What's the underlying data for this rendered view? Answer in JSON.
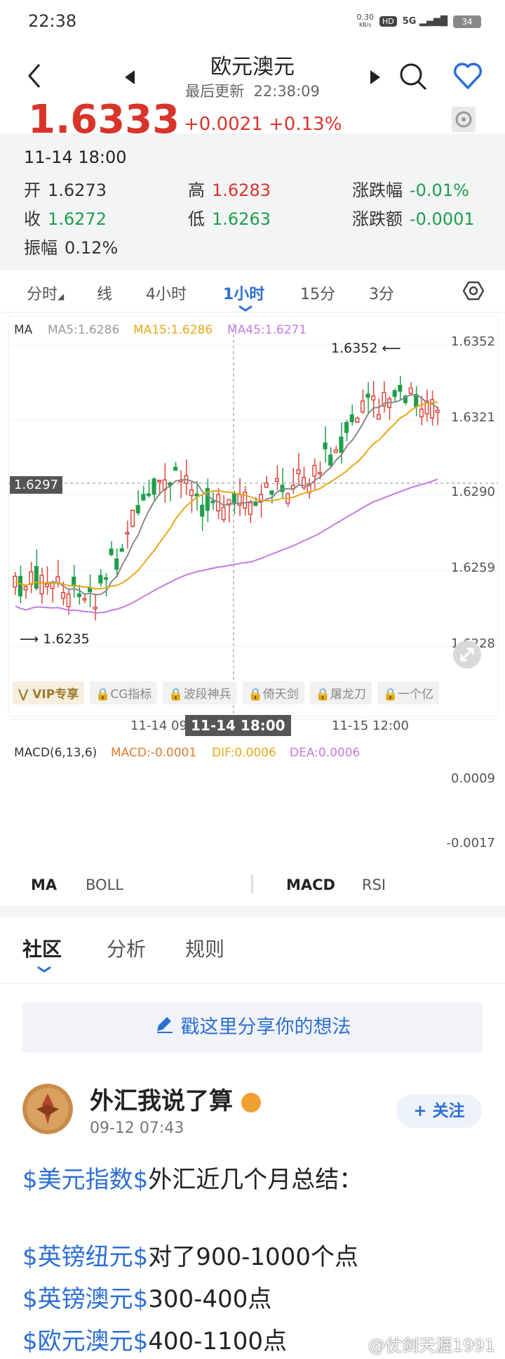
{
  "status": {
    "time": "22:38",
    "speed_top": "0.30",
    "speed_bottom": "KB/s",
    "hd": "HD",
    "net": "5G",
    "battery": "34"
  },
  "header": {
    "title": "欧元澳元",
    "subtitle_label": "最后更新",
    "subtitle_time": "22:38:09",
    "price": "1.6333",
    "change": "+0.0021 +0.13%"
  },
  "info": {
    "datetime": "11-14 18:00",
    "open_label": "开",
    "open": "1.6273",
    "close_label": "收",
    "close": "1.6272",
    "high_label": "高",
    "high": "1.6283",
    "low_label": "低",
    "low": "1.6263",
    "pct_label": "涨跌幅",
    "pct": "-0.01%",
    "amt_label": "涨跌额",
    "amt": "-0.0001",
    "amp_label": "振幅",
    "amp": "0.12%"
  },
  "period_tabs": [
    "分时",
    "线",
    "4小时",
    "1小时",
    "15分",
    "3分"
  ],
  "chart": {
    "ma_label": "MA",
    "ma5": "MA5:1.6286",
    "ma15": "MA15:1.6286",
    "ma45": "MA45:1.6271",
    "price_ticks": [
      "1.6352",
      "1.6321",
      "1.6290",
      "1.6259",
      "1.6228"
    ],
    "high_mark": "1.6352",
    "low_mark": "1.6235",
    "crosshair_price": "1.6297",
    "time_left": "11-14 09",
    "time_cross": "11-14 18:00",
    "time_right": "11-15 12:00",
    "colors": {
      "up": "#e0443a",
      "down": "#1e9f4a",
      "ma5": "#888888",
      "ma15": "#e6a817",
      "ma45": "#c57be0"
    }
  },
  "vip_items": [
    "VIP专享",
    "CG指标",
    "波段神兵",
    "倚天剑",
    "屠龙刀",
    "一个亿"
  ],
  "macd": {
    "label": "MACD(6,13,6)",
    "macd": "MACD:-0.0001",
    "dif": "DIF:0.0006",
    "dea": "DEA:0.0006",
    "top": "0.0009",
    "bottom": "-0.0017"
  },
  "indicator_tabs": {
    "main1": "MA",
    "main2": "BOLL",
    "sub1": "MACD",
    "sub2": "RSI"
  },
  "community_tabs": [
    "社区",
    "分析",
    "规则"
  ],
  "share_placeholder": "戳这里分享你的想法",
  "post": {
    "user": "外汇我说了算",
    "time": "09-12 07:43",
    "follow": "关注",
    "line1_tag": "$美元指数$",
    "line1_text": "外汇近几个月总结：",
    "line2_tag": "$英镑纽元$",
    "line2_text": "对了900-1000个点",
    "line3_tag": "$英镑澳元$",
    "line3_text": "300-400点",
    "line4_tag": "$欧元澳元$",
    "line4_text": "400-1100点"
  },
  "watermark": "@仗剑天涯1991"
}
